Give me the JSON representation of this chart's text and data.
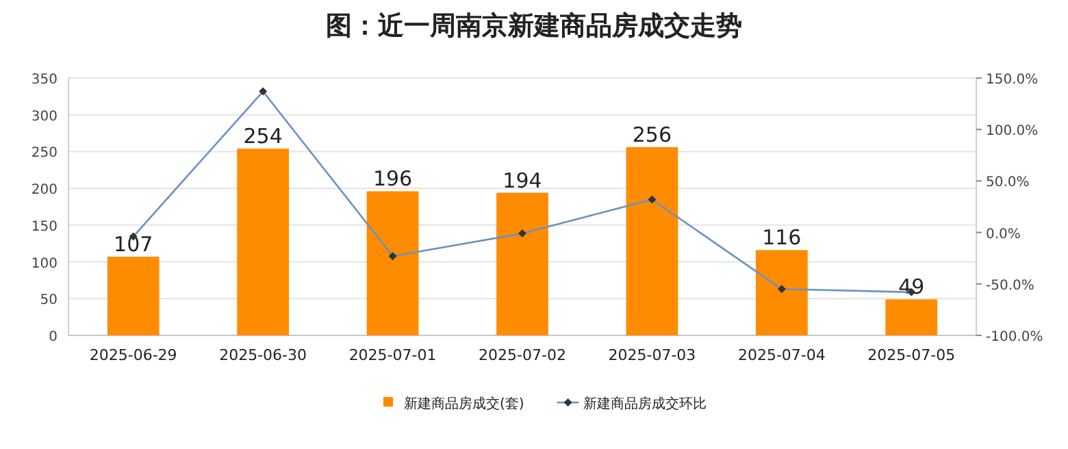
{
  "chart_data": {
    "type": "bar",
    "title": "图：近一周南京新建商品房成交走势",
    "categories": [
      "2025-06-29",
      "2025-06-30",
      "2025-07-01",
      "2025-07-02",
      "2025-07-03",
      "2025-07-04",
      "2025-07-05"
    ],
    "series": [
      {
        "name": "新建商品房成交(套)",
        "color": "#ff8c00",
        "values": [
          107,
          254,
          196,
          194,
          256,
          116,
          49
        ],
        "data_labels": true
      },
      {
        "name": "新建商品房成交环比",
        "type": "line",
        "axis": "y2",
        "color": "#6a93c0",
        "marker": "diamond",
        "values": [
          -4,
          137,
          -23,
          -1,
          32,
          -55,
          -58
        ]
      }
    ],
    "ylim": [
      0,
      350
    ],
    "yticks": [
      0,
      50,
      100,
      150,
      200,
      250,
      300,
      350
    ],
    "y2lim": [
      -100,
      150
    ],
    "y2ticks": [
      {
        "value": -100,
        "label": "-100.0%"
      },
      {
        "value": -50,
        "label": "-50.0%"
      },
      {
        "value": 0,
        "label": "0.0%"
      },
      {
        "value": 50,
        "label": "50.0%"
      },
      {
        "value": 100,
        "label": "100.0%"
      },
      {
        "value": 150,
        "label": "150.0%"
      }
    ],
    "grid": "y",
    "legend": "bottom"
  }
}
